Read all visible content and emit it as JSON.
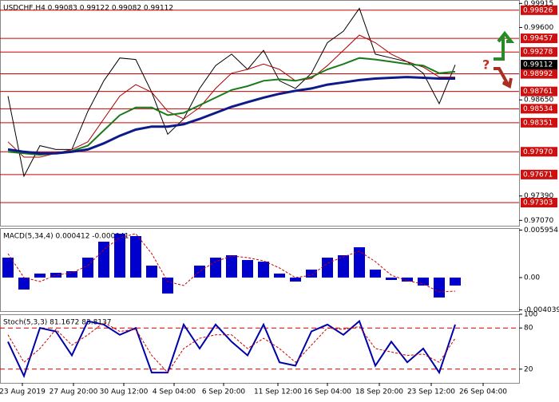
{
  "chart_data": [
    {
      "type": "line",
      "title": "USDCHF,H4 0.99083 0.99122 0.99082 0.99112",
      "x": [
        0,
        1,
        2,
        3,
        4,
        5,
        6,
        7,
        8,
        9,
        10,
        11,
        12,
        13,
        14,
        15,
        16,
        17,
        18,
        19,
        20,
        21,
        22,
        23,
        24,
        25,
        26,
        27,
        28
      ],
      "xlim": [
        -0.5,
        32
      ],
      "ylim": [
        0.97,
        0.9996
      ],
      "yticks": [
        0.99915,
        {
          "value": 0.996,
          "label": "0.99600"
        },
        {
          "value": 0.9865,
          "label": "0.98650"
        },
        {
          "value": 0.9739,
          "label": "0.97390"
        },
        {
          "value": 0.9707,
          "label": "0.97070"
        }
      ],
      "levels": [
        0.99826,
        0.99457,
        0.99278,
        {
          "value": 0.98992,
          "label": "0.98992"
        },
        0.98761,
        0.98534,
        0.98351,
        {
          "value": 0.9797,
          "label": "0.97970"
        },
        0.97671,
        0.97303
      ],
      "last": 0.99112,
      "annotation": "?",
      "series": [
        {
          "color": "#000000",
          "width": 1,
          "values": [
            0.987,
            0.9765,
            0.9805,
            0.98,
            0.98,
            0.985,
            0.989,
            0.992,
            0.9918,
            0.9875,
            0.982,
            0.984,
            0.988,
            0.991,
            0.9925,
            0.9905,
            0.993,
            0.989,
            0.988,
            0.99,
            0.994,
            0.9955,
            0.9985,
            0.9925,
            0.992,
            0.9915,
            0.99,
            0.986,
            0.9911
          ]
        },
        {
          "color": "#aa0000",
          "width": 1,
          "values": [
            0.981,
            0.979,
            0.979,
            0.9795,
            0.98,
            0.981,
            0.984,
            0.987,
            0.9885,
            0.9875,
            0.985,
            0.984,
            0.9855,
            0.988,
            0.99,
            0.9905,
            0.9912,
            0.9905,
            0.989,
            0.9893,
            0.991,
            0.993,
            0.995,
            0.994,
            0.9925,
            0.9915,
            0.9908,
            0.9895,
            0.9895
          ]
        },
        {
          "color": "#1a7a1a",
          "width": 2,
          "values": [
            0.9797,
            0.9795,
            0.9793,
            0.9795,
            0.9798,
            0.9805,
            0.9825,
            0.9845,
            0.9855,
            0.9855,
            0.9845,
            0.9848,
            0.9858,
            0.9868,
            0.9878,
            0.9883,
            0.989,
            0.9892,
            0.989,
            0.9895,
            0.9905,
            0.9912,
            0.992,
            0.9918,
            0.9915,
            0.9912,
            0.991,
            0.99,
            0.9902
          ]
        },
        {
          "color": "#0d1a8a",
          "width": 3,
          "values": [
            0.98,
            0.9797,
            0.9795,
            0.9795,
            0.9797,
            0.98,
            0.9808,
            0.9818,
            0.9826,
            0.983,
            0.983,
            0.9833,
            0.984,
            0.9848,
            0.9856,
            0.9862,
            0.9868,
            0.9873,
            0.9877,
            0.988,
            0.9885,
            0.9888,
            0.9891,
            0.9893,
            0.9894,
            0.9895,
            0.9894,
            0.9893,
            0.9893
          ]
        }
      ]
    },
    {
      "type": "bar",
      "title": "MACD(5,34,4) 0.000412 -0.000041",
      "x": [
        0,
        1,
        2,
        3,
        4,
        5,
        6,
        7,
        8,
        9,
        10,
        11,
        12,
        13,
        14,
        15,
        16,
        17,
        18,
        19,
        20,
        21,
        22,
        23,
        24,
        25,
        26,
        27,
        28
      ],
      "xlim": [
        -0.5,
        32
      ],
      "ylim": [
        -0.0042,
        0.0062
      ],
      "yticks": [
        0.005954,
        {
          "value": 0,
          "label": "0.00"
        },
        -0.004039
      ],
      "series": [
        {
          "color": "#0000cc",
          "values": [
            0.0025,
            -0.0015,
            0.0005,
            0.0006,
            0.0008,
            0.0025,
            0.0045,
            0.0055,
            0.0052,
            0.0015,
            -0.002,
            0,
            0.0015,
            0.0025,
            0.0028,
            0.0022,
            0.002,
            0.0005,
            -0.0005,
            0.001,
            0.0025,
            0.0028,
            0.0038,
            0.001,
            -0.0003,
            -0.0005,
            -0.001,
            -0.0025,
            -0.001
          ]
        },
        {
          "type": "line",
          "style": "dashed",
          "color": "#cc0000",
          "values": [
            0.003,
            0,
            -0.0005,
            0.0003,
            0.0006,
            0.0015,
            0.0035,
            0.005,
            0.0055,
            0.003,
            -0.0005,
            -0.001,
            0.0008,
            0.002,
            0.0027,
            0.0025,
            0.0021,
            0.0012,
            0,
            0.0003,
            0.0018,
            0.0026,
            0.0033,
            0.002,
            0.0003,
            -0.0004,
            -0.0008,
            -0.0018,
            -0.0017
          ]
        }
      ]
    },
    {
      "type": "line",
      "title": "Stoch(5,3,3) 81.1672 83.8137",
      "x": [
        0,
        1,
        2,
        3,
        4,
        5,
        6,
        7,
        8,
        9,
        10,
        11,
        12,
        13,
        14,
        15,
        16,
        17,
        18,
        19,
        20,
        21,
        22,
        23,
        24,
        25,
        26,
        27,
        28
      ],
      "xlim": [
        -0.5,
        32
      ],
      "ylim": [
        0,
        100
      ],
      "yticks": [
        100,
        80,
        20
      ],
      "levels": [
        80,
        20
      ],
      "xticks": [
        {
          "value": 0.9,
          "label": "23 Aug 2019"
        },
        {
          "value": 4.1,
          "label": "27 Aug 20:00"
        },
        {
          "value": 7.25,
          "label": "30 Aug 12:00"
        },
        {
          "value": 10.4,
          "label": "4 Sep 04:00"
        },
        {
          "value": 13.5,
          "label": "6 Sep 20:00"
        },
        {
          "value": 16.9,
          "label": "11 Sep 12:00"
        },
        {
          "value": 20,
          "label": "16 Sep 04:00"
        },
        {
          "value": 23.25,
          "label": "18 Sep 20:00"
        },
        {
          "value": 26.5,
          "label": "23 Sep 12:00"
        },
        {
          "value": 29.75,
          "label": "26 Sep 04:00"
        }
      ],
      "series": [
        {
          "color": "#0000aa",
          "width": 2,
          "values": [
            60,
            10,
            80,
            75,
            40,
            90,
            85,
            70,
            80,
            15,
            15,
            85,
            50,
            85,
            60,
            40,
            85,
            30,
            25,
            75,
            85,
            70,
            90,
            25,
            60,
            30,
            50,
            15,
            85
          ]
        },
        {
          "style": "dashed",
          "color": "#cc0000",
          "width": 1,
          "values": [
            70,
            30,
            50,
            78,
            55,
            70,
            88,
            75,
            78,
            40,
            15,
            50,
            65,
            70,
            70,
            50,
            65,
            50,
            30,
            55,
            80,
            78,
            82,
            50,
            45,
            40,
            42,
            30,
            65
          ]
        }
      ]
    }
  ]
}
